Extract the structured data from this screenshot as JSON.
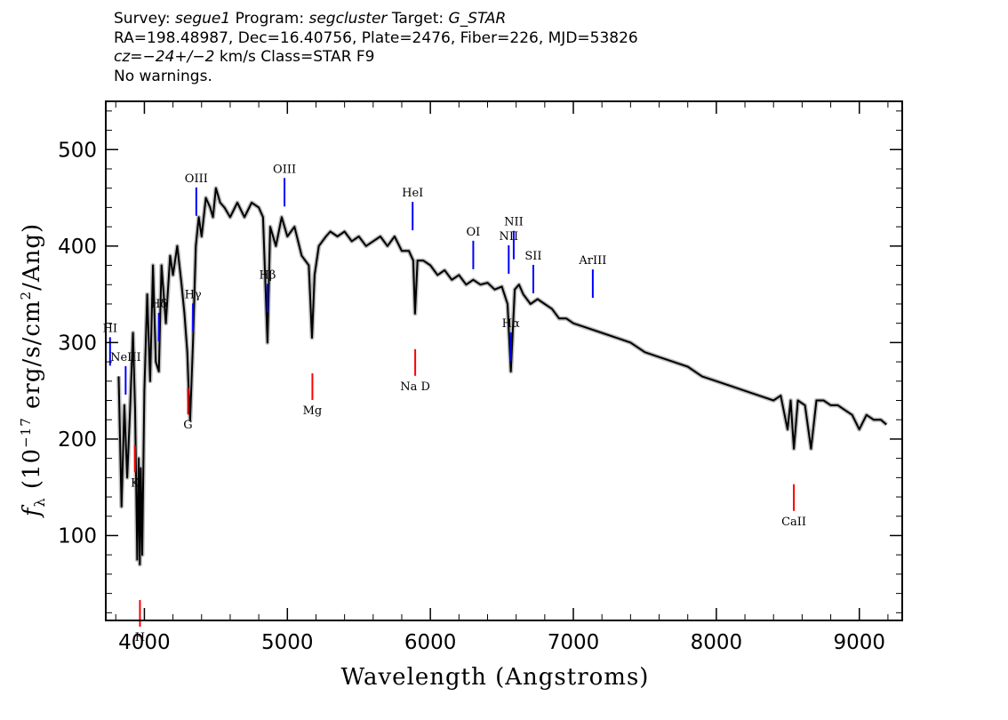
{
  "header": {
    "survey_label": "Survey:",
    "survey": "segue1",
    "program_label": "Program:",
    "program": "segcluster",
    "target_label": "Target:",
    "target": "G_STAR",
    "line2": "RA=198.48987, Dec=16.40756, Plate=2476, Fiber=226, MJD=53826",
    "cz_label": "cz=",
    "cz_value": "−24+/−2",
    "cz_rest": " km/s Class=STAR F9",
    "line4": "No warnings."
  },
  "colors": {
    "spectrum": "#000000",
    "error": "#a0a0a0",
    "emission": "#0000ff",
    "absorption": "#ff0000"
  },
  "chart_data": {
    "type": "line",
    "xlabel": "Wavelength (Angstroms)",
    "ylabel_prefix": "f",
    "ylabel_sub": "λ",
    "ylabel_units_pre": " (10",
    "ylabel_exp": "−17",
    "ylabel_units_mid": " erg/s/cm",
    "ylabel_sq": "2",
    "ylabel_units_post": "/Ang)",
    "xlim": [
      3730,
      9300
    ],
    "ylim": [
      12,
      550
    ],
    "xticks": [
      4000,
      5000,
      6000,
      7000,
      8000,
      9000
    ],
    "xtick_labels": [
      "4000",
      "5000",
      "6000",
      "7000",
      "8000",
      "9000"
    ],
    "yticks": [
      100,
      200,
      300,
      400,
      500
    ],
    "ytick_labels": [
      "100",
      "200",
      "300",
      "400",
      "500"
    ],
    "grid": false,
    "series": [
      {
        "x": [
          3820,
          3840,
          3860,
          3880,
          3900,
          3920,
          3935,
          3950,
          3960,
          3968,
          3975,
          3985,
          4000,
          4020,
          4040,
          4060,
          4080,
          4101,
          4120,
          4150,
          4180,
          4200,
          4230,
          4260,
          4280,
          4300,
          4310,
          4320,
          4340,
          4360,
          4380,
          4400,
          4430,
          4460,
          4480,
          4500,
          4530,
          4560,
          4600,
          4650,
          4700,
          4750,
          4800,
          4830,
          4861,
          4880,
          4920,
          4960,
          5000,
          5050,
          5100,
          5150,
          5172,
          5190,
          5220,
          5270,
          5300,
          5350,
          5400,
          5450,
          5500,
          5550,
          5600,
          5650,
          5700,
          5750,
          5800,
          5850,
          5880,
          5893,
          5910,
          5950,
          6000,
          6050,
          6100,
          6150,
          6200,
          6250,
          6300,
          6350,
          6400,
          6450,
          6500,
          6540,
          6563,
          6590,
          6620,
          6650,
          6700,
          6750,
          6800,
          6850,
          6900,
          6950,
          7000,
          7100,
          7200,
          7300,
          7400,
          7500,
          7600,
          7700,
          7800,
          7900,
          8000,
          8100,
          8200,
          8300,
          8400,
          8450,
          8498,
          8520,
          8542,
          8570,
          8620,
          8662,
          8700,
          8750,
          8800,
          8850,
          8900,
          8950,
          9000,
          9050,
          9100,
          9150,
          9190
        ],
        "y": [
          265,
          130,
          235,
          160,
          230,
          310,
          230,
          75,
          180,
          70,
          170,
          80,
          250,
          350,
          260,
          380,
          280,
          270,
          380,
          320,
          390,
          370,
          400,
          360,
          330,
          290,
          250,
          220,
          300,
          400,
          430,
          410,
          450,
          440,
          430,
          460,
          445,
          440,
          430,
          445,
          430,
          445,
          440,
          430,
          300,
          420,
          400,
          430,
          410,
          420,
          390,
          380,
          305,
          370,
          400,
          410,
          415,
          410,
          415,
          405,
          410,
          400,
          405,
          410,
          400,
          410,
          395,
          395,
          385,
          330,
          385,
          385,
          380,
          370,
          375,
          365,
          370,
          360,
          365,
          360,
          362,
          355,
          358,
          340,
          270,
          355,
          360,
          350,
          340,
          345,
          340,
          335,
          325,
          325,
          320,
          315,
          310,
          305,
          300,
          290,
          285,
          280,
          275,
          265,
          260,
          255,
          250,
          245,
          240,
          245,
          210,
          240,
          190,
          240,
          235,
          190,
          240,
          240,
          235,
          235,
          230,
          225,
          210,
          225,
          220,
          220,
          215
        ]
      }
    ],
    "emission_lines": [
      {
        "name": "H",
        "name_suffix": "",
        "label": "HI",
        "wavelength": 3760
      },
      {
        "name": "H",
        "name_suffix": "δ",
        "label": "Hδ",
        "wavelength": 4101
      },
      {
        "name": "H",
        "name_suffix": "γ",
        "label": "Hγ",
        "wavelength": 4340
      },
      {
        "name": "H",
        "name_suffix": "β",
        "label": "Hβ",
        "wavelength": 4861
      },
      {
        "name": "",
        "name_suffix": "",
        "label": "NeIII",
        "wavelength": 3869
      },
      {
        "name": "",
        "name_suffix": "",
        "label": "OIII",
        "wavelength": 4363
      },
      {
        "name": "",
        "name_suffix": "",
        "label": "OIII",
        "wavelength": 4980
      },
      {
        "name": "",
        "name_suffix": "",
        "label": "HeI",
        "wavelength": 5876
      },
      {
        "name": "",
        "name_suffix": "",
        "label": "OI",
        "wavelength": 6300
      },
      {
        "name": "",
        "name_suffix": "",
        "label": "NII",
        "wavelength": 6548
      },
      {
        "name": "H",
        "name_suffix": "α",
        "label": "Hα",
        "wavelength": 6563
      },
      {
        "name": "",
        "name_suffix": "",
        "label": "NII",
        "wavelength": 6583
      },
      {
        "name": "",
        "name_suffix": "",
        "label": "SII",
        "wavelength": 6720
      },
      {
        "name": "",
        "name_suffix": "",
        "label": "ArIII",
        "wavelength": 7136
      }
    ],
    "absorption_lines": [
      {
        "label": "K",
        "wavelength": 3934
      },
      {
        "label": "H",
        "wavelength": 3969
      },
      {
        "label": "G",
        "wavelength": 4305
      },
      {
        "label": "Mg",
        "wavelength": 5175
      },
      {
        "label": "Na D",
        "wavelength": 5894
      },
      {
        "label": "CaII",
        "wavelength": 8542
      }
    ]
  }
}
